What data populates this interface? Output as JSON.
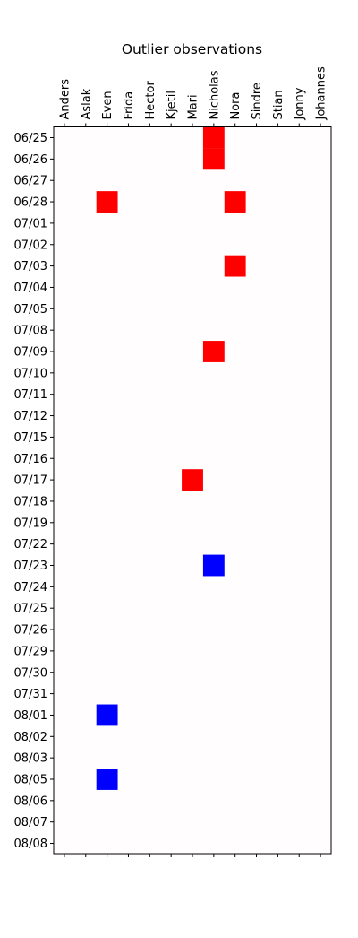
{
  "chart_data": {
    "type": "heatmap",
    "title": "Outlier observations",
    "xlabel": "",
    "ylabel": "",
    "columns": [
      "Anders",
      "Aslak",
      "Even",
      "Frida",
      "Hector",
      "Kjetil",
      "Mari",
      "Nicholas",
      "Nora",
      "Sindre",
      "Stian",
      "Jonny",
      "Johannes"
    ],
    "rows": [
      "06/25",
      "06/26",
      "06/27",
      "06/28",
      "07/01",
      "07/02",
      "07/03",
      "07/04",
      "07/05",
      "07/08",
      "07/09",
      "07/10",
      "07/11",
      "07/12",
      "07/15",
      "07/16",
      "07/17",
      "07/18",
      "07/19",
      "07/22",
      "07/23",
      "07/24",
      "07/25",
      "07/26",
      "07/29",
      "07/30",
      "07/31",
      "08/01",
      "08/02",
      "08/03",
      "08/05",
      "08/06",
      "08/07",
      "08/08"
    ],
    "high_color": "#ff0000",
    "low_color": "#0000ff",
    "background_color": "#fffdfd",
    "high_cells": [
      {
        "row": "06/25",
        "column": "Nicholas"
      },
      {
        "row": "06/26",
        "column": "Nicholas"
      },
      {
        "row": "06/28",
        "column": "Even"
      },
      {
        "row": "06/28",
        "column": "Nora"
      },
      {
        "row": "07/03",
        "column": "Nora"
      },
      {
        "row": "07/09",
        "column": "Nicholas"
      },
      {
        "row": "07/17",
        "column": "Mari"
      }
    ],
    "low_cells": [
      {
        "row": "07/23",
        "column": "Nicholas"
      },
      {
        "row": "08/01",
        "column": "Even"
      },
      {
        "row": "08/05",
        "column": "Even"
      }
    ],
    "x_tick_position": "top and bottom, labels top, rotated 90°",
    "y_tick_position": "left",
    "grid": false,
    "legend": "none"
  }
}
